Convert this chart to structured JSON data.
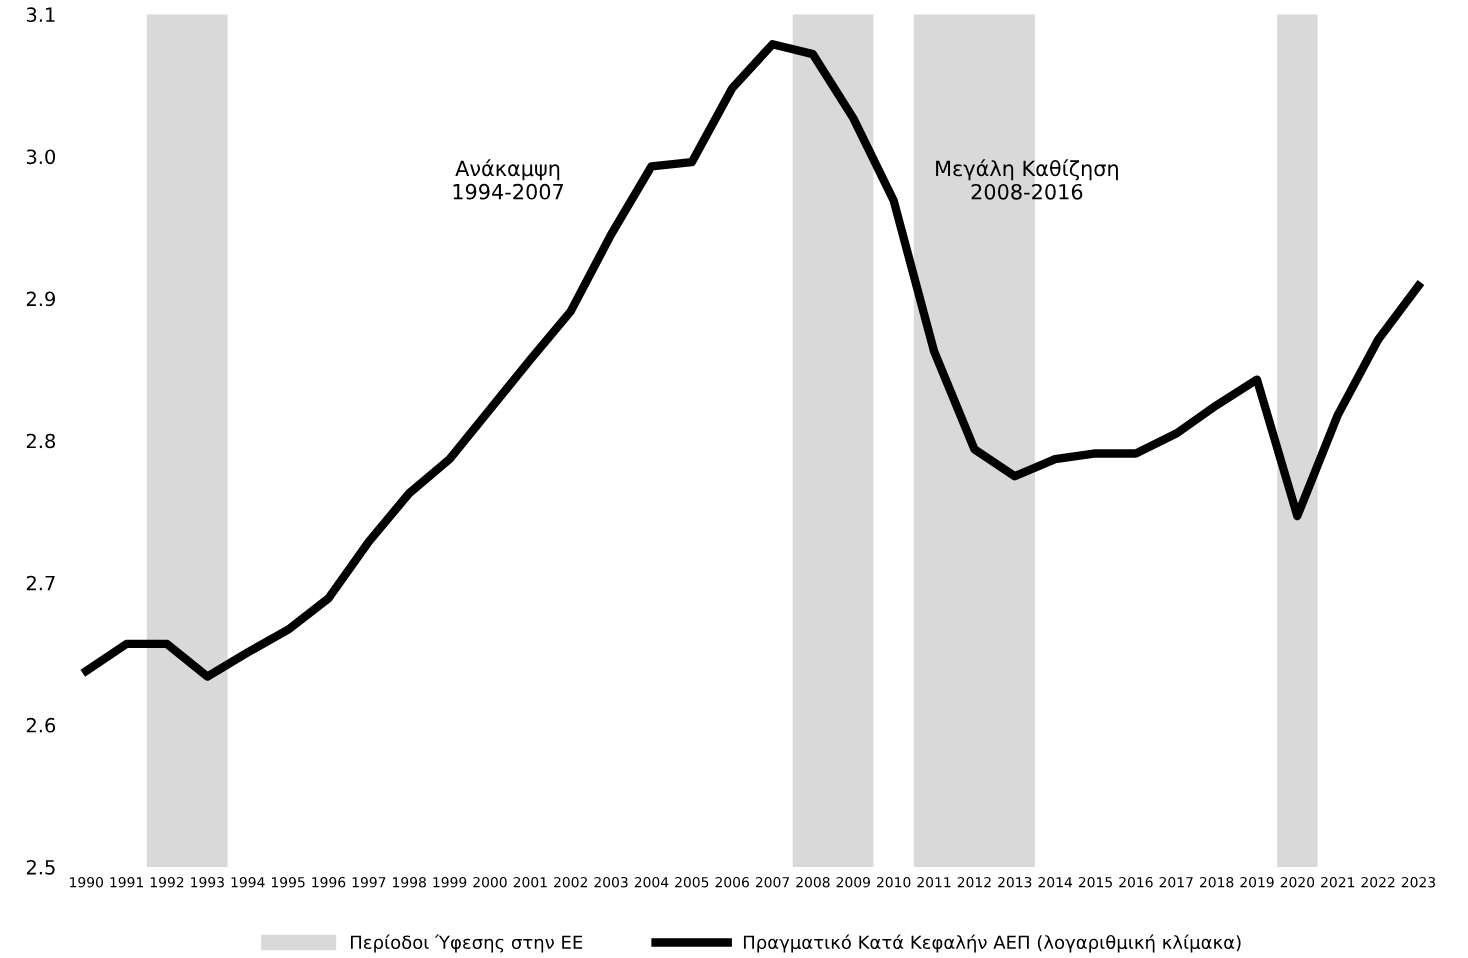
{
  "chart_data": {
    "type": "line",
    "categories": [
      "1990",
      "1991",
      "1992",
      "1993",
      "1994",
      "1995",
      "1996",
      "1997",
      "1998",
      "1999",
      "2000",
      "2001",
      "2002",
      "2003",
      "2004",
      "2005",
      "2006",
      "2007",
      "2008",
      "2009",
      "2010",
      "2011",
      "2012",
      "2013",
      "2014",
      "2015",
      "2016",
      "2017",
      "2018",
      "2019",
      "2020",
      "2021",
      "2022",
      "2023"
    ],
    "series": [
      {
        "name": "Πραγματικό Κατά Κεφαλήν ΑΕΠ (λογαριθμική κλίμακα)",
        "color": "#000000",
        "values": [
          2.638,
          2.657,
          2.657,
          2.634,
          2.651,
          2.667,
          2.689,
          2.729,
          2.763,
          2.787,
          2.822,
          2.857,
          2.891,
          2.945,
          2.993,
          2.996,
          3.048,
          3.079,
          3.072,
          3.027,
          2.969,
          2.863,
          2.794,
          2.775,
          2.787,
          2.791,
          2.791,
          2.805,
          2.825,
          2.843,
          2.747,
          2.818,
          2.871,
          2.909
        ]
      }
    ],
    "ylim": [
      2.5,
      3.1
    ],
    "yticks": [
      2.5,
      2.6,
      2.7,
      2.8,
      2.9,
      {
        "value": 3.0,
        "label": "3.0"
      },
      3.1
    ],
    "bands": [
      {
        "axis": "x",
        "from": "1992",
        "to": "1993",
        "label": "Περίοδοι Ύφεσης στην ΕΕ",
        "color": "#d9d9d9"
      },
      {
        "axis": "x",
        "from": "2008",
        "to": "2009",
        "color": "#d9d9d9"
      },
      {
        "axis": "x",
        "from": "2011",
        "to": "2013",
        "color": "#d9d9d9"
      },
      {
        "axis": "x",
        "from": "2020",
        "to": "2020",
        "color": "#d9d9d9"
      }
    ],
    "annotations": [
      "Ανάκαμψη\n1994-2007",
      "Μεγάλη Καθίζηση\n2008-2016"
    ],
    "grid": false,
    "legend": "bottom",
    "marker": "none",
    "line_style": "solid"
  }
}
